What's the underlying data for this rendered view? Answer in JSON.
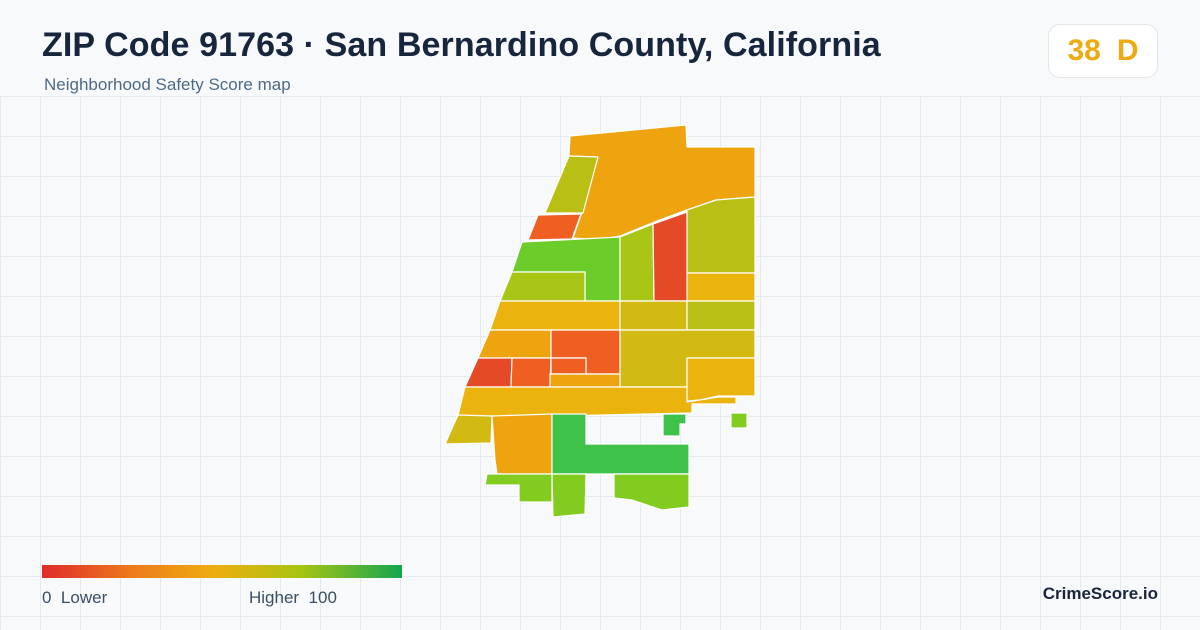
{
  "header": {
    "title": "ZIP Code 91763 · San Bernardino County, California",
    "subtitle": "Neighborhood Safety Score map"
  },
  "score": {
    "value": "38",
    "grade": "D",
    "color": "#eeaa10"
  },
  "legend": {
    "low_value": "0",
    "low_label": "Lower",
    "high_label": "Higher",
    "high_value": "100",
    "colors": [
      "#e02a2a",
      "#ee7a1c",
      "#eeae10",
      "#a6c412",
      "#14a54f"
    ]
  },
  "brand": "CrimeScore.io",
  "map": {
    "colors": {
      "red": "#e34a25",
      "red_orange": "#ee5f21",
      "orange": "#eea40f",
      "amber": "#ebb30d",
      "yellow_olive": "#d2ba12",
      "olive": "#b9bf15",
      "yellow_green": "#a9c516",
      "light_green": "#82cb1f",
      "green": "#6ccc2a",
      "bright_green": "#3fc24a"
    }
  }
}
